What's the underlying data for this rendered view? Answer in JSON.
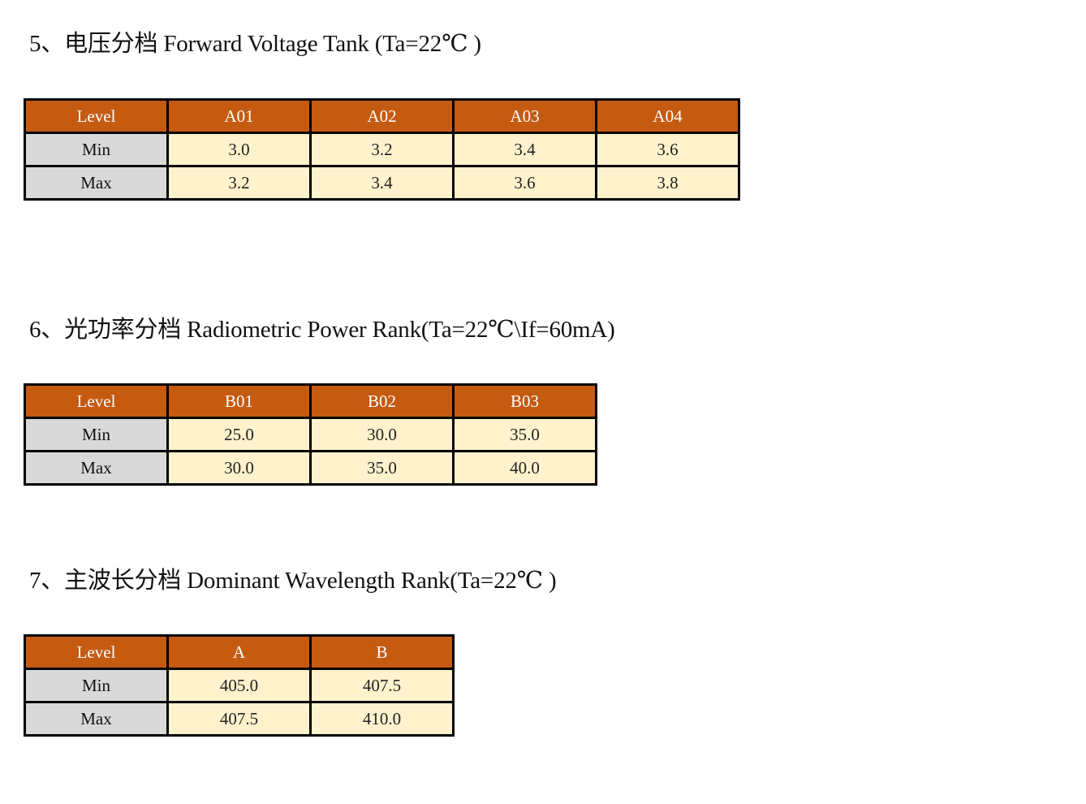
{
  "sections": [
    {
      "title": "5、电压分档 Forward Voltage Tank (Ta=22℃ )",
      "header": [
        "Level",
        "A01",
        "A02",
        "A03",
        "A04"
      ],
      "rows": [
        {
          "label": "Min",
          "values": [
            "3.0",
            "3.2",
            "3.4",
            "3.6"
          ]
        },
        {
          "label": "Max",
          "values": [
            "3.2",
            "3.4",
            "3.6",
            "3.8"
          ]
        }
      ]
    },
    {
      "title": "6、光功率分档 Radiometric Power Rank(Ta=22℃\\If=60mA)",
      "header": [
        "Level",
        "B01",
        "B02",
        "B03"
      ],
      "rows": [
        {
          "label": "Min",
          "values": [
            "25.0",
            "30.0",
            "35.0"
          ]
        },
        {
          "label": "Max",
          "values": [
            "30.0",
            "35.0",
            "40.0"
          ]
        }
      ]
    },
    {
      "title": "7、主波长分档 Dominant Wavelength Rank(Ta=22℃ )",
      "header": [
        "Level",
        "A",
        "B"
      ],
      "rows": [
        {
          "label": "Min",
          "values": [
            "405.0",
            "407.5"
          ]
        },
        {
          "label": "Max",
          "values": [
            "407.5",
            "410.0"
          ]
        }
      ]
    }
  ],
  "colors": {
    "header_bg": "#c55a11",
    "header_text": "#ffffff",
    "row_label_bg": "#d9d9d9",
    "value_bg": "#fff2cc",
    "border": "#000000"
  }
}
